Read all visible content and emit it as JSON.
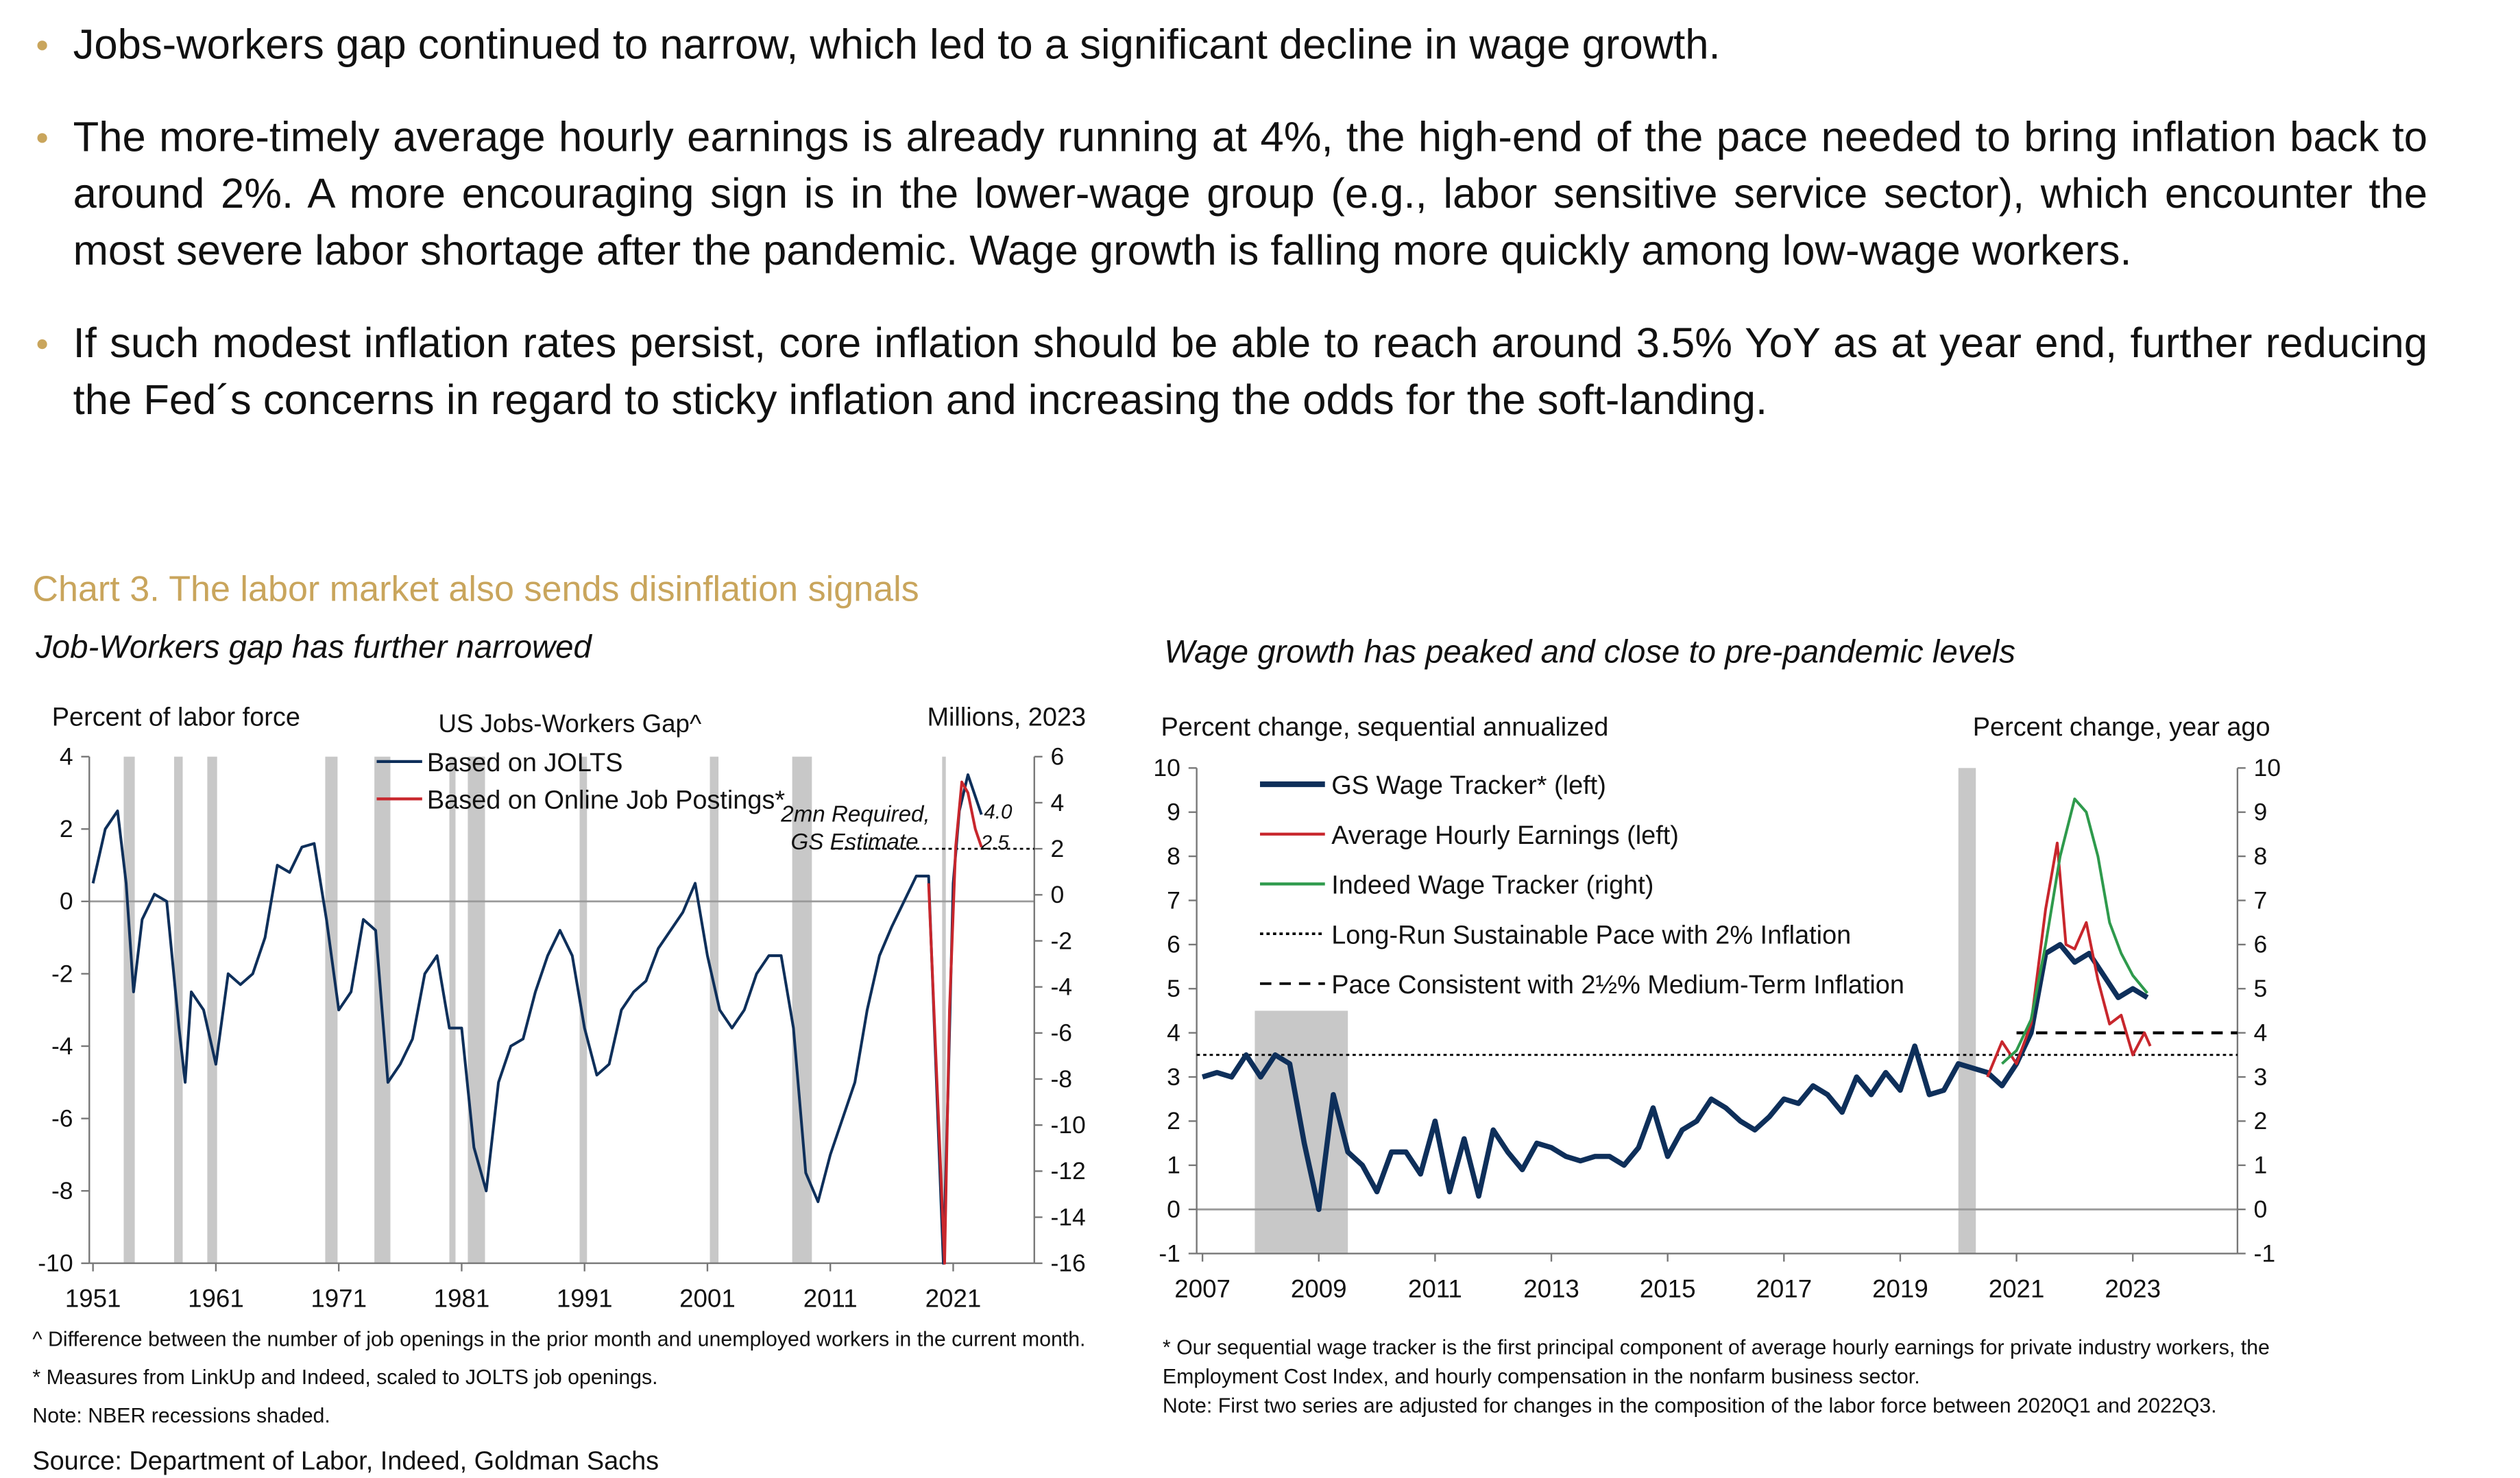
{
  "bullets": [
    "Jobs-workers gap continued to narrow, which led to a significant decline in wage growth.",
    "The more-timely average hourly earnings is already running at 4%, the high-end of the pace needed to bring inflation back to around 2%. A more encouraging sign is in the lower-wage group (e.g., labor sensitive service sector), which encounter the most severe labor shortage after the pandemic. Wage growth is falling more quickly among low-wage workers.",
    "If such modest inflation rates persist, core inflation should be able to reach around 3.5% YoY as at year end, further reducing the Fed´s concerns in regard to sticky inflation and increasing the odds for the soft-landing."
  ],
  "chart_heading": "Chart 3. The labor market also sends disinflation signals",
  "source": "Source: Department of Labor, Indeed, Goldman Sachs",
  "chart_data": [
    {
      "type": "line",
      "subtitle": "Job-Workers gap has further narrowed",
      "title": "US Jobs-Workers Gap^",
      "ylabel": "Percent of labor force",
      "y2label": "Millions, 2023",
      "xlim": [
        1950.7,
        2027.6
      ],
      "xticks": [
        1951,
        1961,
        1971,
        1981,
        1991,
        2001,
        2011,
        2021
      ],
      "ylim": [
        -10,
        4
      ],
      "yticks": [
        -10,
        -8,
        -6,
        -4,
        -2,
        0,
        2,
        4
      ],
      "y2lim": [
        -16,
        6
      ],
      "y2ticks": [
        -16,
        -14,
        -12,
        -10,
        -8,
        -6,
        -4,
        -2,
        0,
        2,
        4,
        6
      ],
      "recessions": [
        {
          "x": [
            1953.5,
            1954.4
          ]
        },
        {
          "x": [
            1957.6,
            1958.3
          ]
        },
        {
          "x": [
            1960.3,
            1961.1
          ]
        },
        {
          "x": [
            1969.9,
            1970.9
          ]
        },
        {
          "x": [
            1973.9,
            1975.2
          ]
        },
        {
          "x": [
            1980.0,
            1980.5
          ]
        },
        {
          "x": [
            1981.5,
            1982.9
          ]
        },
        {
          "x": [
            1990.6,
            1991.2
          ]
        },
        {
          "x": [
            2001.2,
            2001.9
          ]
        },
        {
          "x": [
            2007.9,
            2009.5
          ]
        },
        {
          "x": [
            2020.1,
            2020.4
          ]
        }
      ],
      "reference_lines": [
        {
          "value": 2,
          "axis": "y2",
          "from": 2011.1,
          "style": "dotted",
          "color": "#000000"
        }
      ],
      "annotations": [
        "2mn Required,",
        "GS Estimate",
        "4.0",
        "2.5"
      ],
      "series": [
        {
          "name": "Based on JOLTS",
          "color": "#0e2f5a",
          "x": [
            1951,
            1952,
            1953,
            1953.7,
            1954.3,
            1955,
            1956,
            1957,
            1958,
            1958.5,
            1959,
            1960,
            1961,
            1962,
            1963,
            1964,
            1965,
            1966,
            1967,
            1968,
            1969,
            1970,
            1971,
            1972,
            1973,
            1974,
            1975,
            1976,
            1977,
            1978,
            1979,
            1980,
            1981,
            1982,
            1983,
            1984,
            1985,
            1986,
            1987,
            1988,
            1989,
            1990,
            1991,
            1992,
            1993,
            1994,
            1995,
            1996,
            1997,
            1998,
            1999,
            2000,
            2001,
            2002,
            2003,
            2004,
            2005,
            2006,
            2007,
            2008,
            2009,
            2010,
            2011,
            2012,
            2013,
            2014,
            2015,
            2016,
            2017,
            2018,
            2019,
            2020.2,
            2020.6,
            2021,
            2021.5,
            2022.2,
            2022.7,
            2023.3
          ],
          "values": [
            0.5,
            2.0,
            2.5,
            0.5,
            -2.5,
            -0.5,
            0.2,
            0.0,
            -3.5,
            -5.0,
            -2.5,
            -3.0,
            -4.5,
            -2.0,
            -2.3,
            -2.0,
            -1.0,
            1.0,
            0.8,
            1.5,
            1.6,
            -0.5,
            -3.0,
            -2.5,
            -0.5,
            -0.8,
            -5.0,
            -4.5,
            -3.8,
            -2.0,
            -1.5,
            -3.5,
            -3.5,
            -6.8,
            -8.0,
            -5.0,
            -4.0,
            -3.8,
            -2.5,
            -1.5,
            -0.8,
            -1.5,
            -3.5,
            -4.8,
            -4.5,
            -3.0,
            -2.5,
            -2.2,
            -1.3,
            -0.8,
            -0.3,
            0.5,
            -1.5,
            -3.0,
            -3.5,
            -3.0,
            -2.0,
            -1.5,
            -1.5,
            -3.5,
            -7.5,
            -8.3,
            -7.0,
            -6.0,
            -5.0,
            -3.0,
            -1.5,
            -0.7,
            0.0,
            0.7,
            0.7,
            -10,
            -5.0,
            0.5,
            2.5,
            3.5,
            3.0,
            2.4
          ]
        },
        {
          "name": "Based on Online Job Postings*",
          "color": "#c8262c",
          "x": [
            2019,
            2020.3,
            2020.7,
            2021.2,
            2021.7,
            2022.2,
            2022.8,
            2023.3
          ],
          "values": [
            0.5,
            -10,
            -3.0,
            1.5,
            3.3,
            3.0,
            2.0,
            1.5
          ]
        }
      ],
      "notes": [
        "^ Difference between the number of job openings in the prior month and unemployed workers in the current month.",
        "* Measures from LinkUp and Indeed, scaled to JOLTS job openings.",
        "Note: NBER recessions shaded."
      ]
    },
    {
      "type": "line",
      "subtitle": "Wage growth has peaked and close to pre-pandemic levels",
      "ylabel": "Percent change, sequential annualized",
      "y2label": "Percent change, year ago",
      "xlim": [
        2006.9,
        2024.8
      ],
      "xticks": [
        2007,
        2009,
        2011,
        2013,
        2015,
        2017,
        2019,
        2021,
        2023
      ],
      "ylim": [
        -1,
        10
      ],
      "yticks": [
        -1,
        0,
        1,
        2,
        3,
        4,
        5,
        6,
        7,
        8,
        9,
        10
      ],
      "y2lim": [
        -1,
        10
      ],
      "y2ticks": [
        -1,
        0,
        1,
        2,
        3,
        4,
        5,
        6,
        7,
        8,
        9,
        10
      ],
      "recessions": [
        {
          "x": [
            2007.9,
            2009.5
          ],
          "top": 4.5
        },
        {
          "x": [
            2020.0,
            2020.3
          ]
        }
      ],
      "series": [
        {
          "name": "GS Wage Tracker* (left)",
          "color": "#0e2f5a",
          "x": [
            2007,
            2007.25,
            2007.5,
            2007.75,
            2008,
            2008.25,
            2008.5,
            2008.75,
            2009,
            2009.25,
            2009.5,
            2009.75,
            2010,
            2010.25,
            2010.5,
            2010.75,
            2011,
            2011.25,
            2011.5,
            2011.75,
            2012,
            2012.25,
            2012.5,
            2012.75,
            2013,
            2013.25,
            2013.5,
            2013.75,
            2014,
            2014.25,
            2014.5,
            2014.75,
            2015,
            2015.25,
            2015.5,
            2015.75,
            2016,
            2016.25,
            2016.5,
            2016.75,
            2017,
            2017.25,
            2017.5,
            2017.75,
            2018,
            2018.25,
            2018.5,
            2018.75,
            2019,
            2019.25,
            2019.5,
            2019.75,
            2020,
            2020.25,
            2020.5,
            2020.75,
            2021,
            2021.25,
            2021.5,
            2021.75,
            2022,
            2022.25,
            2022.5,
            2022.75,
            2023,
            2023.25
          ],
          "values": [
            3.0,
            3.1,
            3.0,
            3.5,
            3.0,
            3.5,
            3.3,
            1.5,
            0.0,
            2.6,
            1.3,
            1.0,
            0.4,
            1.3,
            1.3,
            0.8,
            2.0,
            0.4,
            1.6,
            0.3,
            1.8,
            1.3,
            0.9,
            1.5,
            1.4,
            1.2,
            1.1,
            1.2,
            1.2,
            1.0,
            1.4,
            2.3,
            1.2,
            1.8,
            2.0,
            2.5,
            2.3,
            2.0,
            1.8,
            2.1,
            2.5,
            2.4,
            2.8,
            2.6,
            2.2,
            3.0,
            2.6,
            3.1,
            2.7,
            3.7,
            2.6,
            2.7,
            3.3,
            3.2,
            3.1,
            2.8,
            3.3,
            4.0,
            5.8,
            6.0,
            5.6,
            5.8,
            5.3,
            4.8,
            5.0,
            4.8
          ]
        },
        {
          "name": "Average Hourly Earnings (left)",
          "color": "#c8262c",
          "x": [
            2020.5,
            2020.75,
            2021,
            2021.25,
            2021.5,
            2021.7,
            2021.85,
            2022,
            2022.2,
            2022.4,
            2022.6,
            2022.8,
            2023,
            2023.2,
            2023.3
          ],
          "values": [
            3.0,
            3.8,
            3.3,
            4.2,
            6.8,
            8.3,
            6.0,
            5.9,
            6.5,
            5.2,
            4.2,
            4.4,
            3.5,
            4.0,
            3.7
          ]
        },
        {
          "name": "Indeed Wage Tracker (right)",
          "color": "#2e9a4c",
          "axis": "y2",
          "x": [
            2020.75,
            2021,
            2021.25,
            2021.5,
            2021.75,
            2022,
            2022.2,
            2022.4,
            2022.6,
            2022.8,
            2023,
            2023.25
          ],
          "values": [
            3.3,
            3.6,
            4.3,
            6.0,
            8.0,
            9.3,
            9.0,
            8.0,
            6.5,
            5.8,
            5.3,
            4.9
          ]
        }
      ],
      "reference_lines": [
        {
          "name": "Long-Run Sustainable Pace with 2% Inflation",
          "value": 3.5,
          "style": "dotted",
          "color": "#000000"
        },
        {
          "name": "Pace Consistent with 2½% Medium-Term Inflation",
          "value": 4.0,
          "from": 2021,
          "style": "dashed",
          "color": "#000000"
        }
      ],
      "notes": [
        "* Our sequential wage tracker is the first principal component of average hourly earnings for private industry workers, the",
        "Employment Cost Index, and hourly compensation in the nonfarm business sector.",
        "Note: First two series are adjusted for changes in the composition of the labor force between 2020Q1 and 2022Q3."
      ]
    }
  ]
}
